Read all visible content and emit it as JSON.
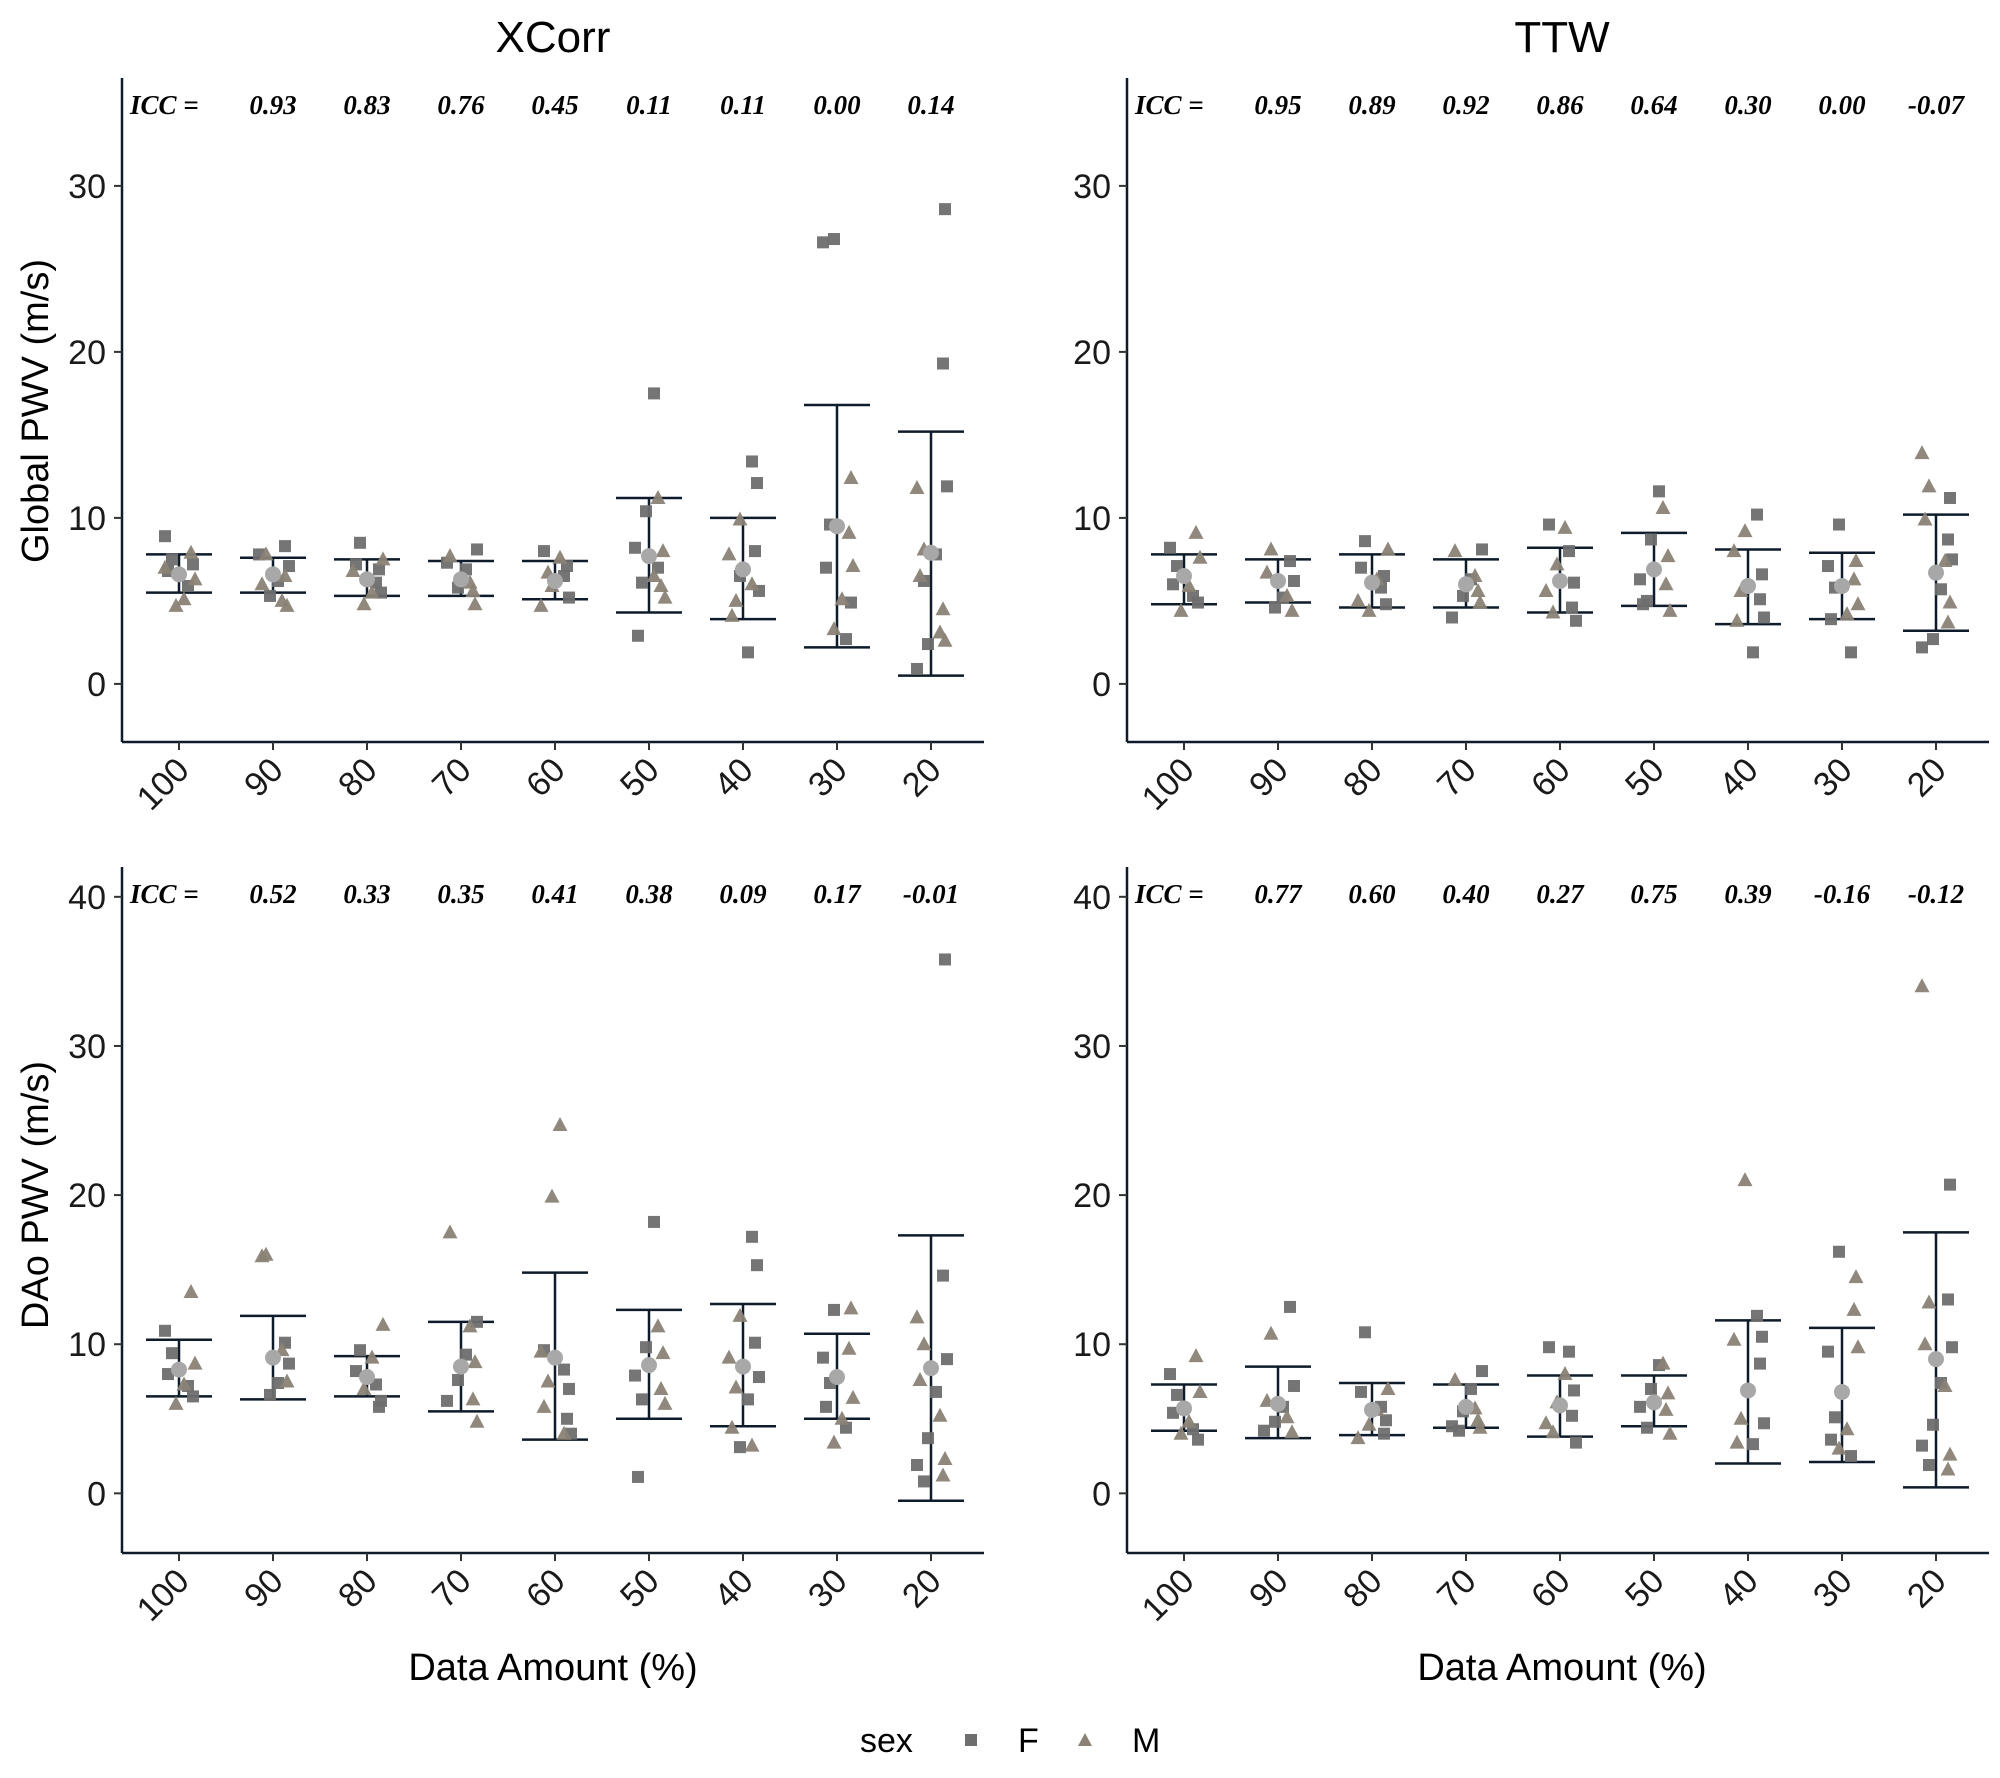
{
  "legend": {
    "title": "sex",
    "entries": [
      {
        "label": "F",
        "shape": "square",
        "color": "#6e6e6e"
      },
      {
        "label": "M",
        "shape": "triangle",
        "color": "#8a8275"
      }
    ]
  },
  "colors": {
    "axis": "#0d1b2a",
    "mean_point": "#a8a8a8",
    "square": "#6e6e6e",
    "triangle": "#8a8275"
  },
  "chart_data": [
    {
      "type": "scatter",
      "column_title": "XCorr",
      "ylabel": "Global PWV (m/s)",
      "xlabel": "",
      "categories": [
        "100",
        "90",
        "80",
        "70",
        "60",
        "50",
        "40",
        "30",
        "20"
      ],
      "ylim": [
        -3.5,
        36.5
      ],
      "yticks": [
        0,
        10,
        20,
        30
      ],
      "icc_label": "ICC =",
      "icc": [
        "0.93",
        "0.83",
        "0.76",
        "0.45",
        "0.11",
        "0.11",
        "0.00",
        "0.14"
      ],
      "mean": [
        6.6,
        6.6,
        6.3,
        6.3,
        6.2,
        7.7,
        6.9,
        9.5,
        7.9
      ],
      "lower": [
        5.5,
        5.5,
        5.3,
        5.3,
        5.1,
        4.3,
        3.9,
        2.2,
        0.5
      ],
      "upper": [
        7.8,
        7.6,
        7.5,
        7.4,
        7.4,
        11.2,
        10.0,
        16.8,
        15.2
      ],
      "points_F": [
        [
          8.9,
          7.5,
          6.8,
          5.9,
          7.2
        ],
        [
          8.3,
          7.1,
          6.2,
          5.3,
          7.8
        ],
        [
          8.5,
          7.2,
          6.1,
          5.5,
          6.9
        ],
        [
          8.1,
          6.9,
          5.8,
          7.3
        ],
        [
          8.0,
          6.5,
          5.2,
          7.1
        ],
        [
          17.5,
          10.4,
          8.2,
          6.1,
          2.9,
          7.0
        ],
        [
          13.4,
          12.1,
          8.0,
          5.6,
          1.9,
          6.5
        ],
        [
          26.8,
          26.6,
          9.6,
          7.0,
          2.7,
          4.9
        ],
        [
          28.6,
          19.3,
          11.9,
          7.8,
          2.4,
          0.9,
          6.2
        ]
      ],
      "points_M": [
        [
          7.9,
          6.3,
          5.1,
          4.7,
          7.0
        ],
        [
          7.8,
          6.0,
          5.0,
          4.7,
          6.5
        ],
        [
          7.5,
          5.5,
          4.8,
          6.8
        ],
        [
          7.7,
          6.1,
          4.8,
          5.6
        ],
        [
          7.6,
          5.9,
          4.7,
          6.7
        ],
        [
          11.2,
          8.0,
          5.9,
          5.2,
          6.5
        ],
        [
          9.9,
          7.8,
          5.0,
          4.1,
          6.0
        ],
        [
          12.4,
          9.1,
          7.1,
          5.1,
          3.3
        ],
        [
          11.8,
          8.1,
          6.5,
          3.1,
          2.6,
          4.5
        ]
      ]
    },
    {
      "type": "scatter",
      "column_title": "TTW",
      "ylabel": "",
      "xlabel": "",
      "categories": [
        "100",
        "90",
        "80",
        "70",
        "60",
        "50",
        "40",
        "30",
        "20"
      ],
      "ylim": [
        -3.5,
        36.5
      ],
      "yticks": [
        0,
        10,
        20,
        30
      ],
      "icc_label": "ICC =",
      "icc": [
        "0.95",
        "0.89",
        "0.92",
        "0.86",
        "0.64",
        "0.30",
        "0.00",
        "-0.07"
      ],
      "mean": [
        6.5,
        6.2,
        6.1,
        6.0,
        6.2,
        6.9,
        5.9,
        5.9,
        6.7
      ],
      "lower": [
        4.8,
        4.9,
        4.6,
        4.6,
        4.3,
        4.7,
        3.6,
        3.9,
        3.2
      ],
      "upper": [
        7.8,
        7.5,
        7.8,
        7.5,
        8.2,
        9.1,
        8.1,
        7.9,
        10.2
      ],
      "points_F": [
        [
          8.2,
          7.1,
          6.0,
          5.3,
          4.9
        ],
        [
          7.4,
          6.2,
          5.2,
          4.6
        ],
        [
          8.6,
          7.0,
          5.8,
          4.8,
          6.5
        ],
        [
          8.1,
          6.3,
          5.3,
          4.0
        ],
        [
          9.6,
          8.0,
          6.1,
          4.6,
          3.8
        ],
        [
          11.6,
          8.7,
          6.3,
          5.0,
          4.8
        ],
        [
          10.2,
          6.6,
          5.1,
          4.0,
          1.9
        ],
        [
          9.6,
          7.1,
          5.8,
          3.9,
          1.9
        ],
        [
          11.2,
          8.7,
          7.5,
          5.7,
          2.7,
          2.2
        ]
      ],
      "points_M": [
        [
          9.1,
          7.6,
          5.9,
          4.4
        ],
        [
          8.1,
          6.7,
          5.3,
          4.4
        ],
        [
          8.1,
          6.3,
          4.4,
          5.0
        ],
        [
          8.0,
          6.5,
          4.9,
          5.6
        ],
        [
          9.4,
          7.2,
          5.6,
          4.3
        ],
        [
          10.6,
          7.7,
          6.0,
          4.4
        ],
        [
          9.2,
          8.0,
          5.6,
          3.8
        ],
        [
          7.4,
          6.3,
          4.8,
          4.2
        ],
        [
          13.9,
          11.9,
          9.9,
          7.4,
          4.9,
          3.7
        ]
      ]
    },
    {
      "type": "scatter",
      "column_title": "",
      "ylabel": "DAo PWV (m/s)",
      "xlabel": "Data Amount (%)",
      "categories": [
        "100",
        "90",
        "80",
        "70",
        "60",
        "50",
        "40",
        "30",
        "20"
      ],
      "ylim": [
        -4,
        42
      ],
      "yticks": [
        0,
        10,
        20,
        30,
        40
      ],
      "icc_label": "ICC =",
      "icc": [
        "0.52",
        "0.33",
        "0.35",
        "0.41",
        "0.38",
        "0.09",
        "0.17",
        "-0.01"
      ],
      "mean": [
        8.3,
        9.1,
        7.8,
        8.5,
        9.1,
        8.6,
        8.5,
        7.8,
        8.4
      ],
      "lower": [
        6.5,
        6.3,
        6.5,
        5.5,
        3.6,
        5.0,
        4.5,
        5.0,
        -0.5
      ],
      "upper": [
        10.3,
        11.9,
        9.2,
        11.5,
        14.8,
        12.3,
        12.7,
        10.7,
        17.3
      ],
      "points_F": [
        [
          10.9,
          9.4,
          8.0,
          7.2,
          6.5
        ],
        [
          10.1,
          8.7,
          7.4,
          6.6
        ],
        [
          9.6,
          8.2,
          7.3,
          6.2,
          5.8
        ],
        [
          11.5,
          9.3,
          7.6,
          6.2
        ],
        [
          9.6,
          8.3,
          7.0,
          5.0,
          4.0
        ],
        [
          18.2,
          9.8,
          7.9,
          6.3,
          1.1
        ],
        [
          17.2,
          15.3,
          10.1,
          7.8,
          6.3,
          3.1
        ],
        [
          12.3,
          9.1,
          7.4,
          5.8,
          4.4
        ],
        [
          35.8,
          14.6,
          9.0,
          6.8,
          3.7,
          1.9,
          0.8
        ]
      ],
      "points_M": [
        [
          13.5,
          8.7,
          7.3,
          6.0
        ],
        [
          16.0,
          15.9,
          9.6,
          7.5
        ],
        [
          11.3,
          9.1,
          7.0
        ],
        [
          17.5,
          11.2,
          8.8,
          6.3,
          4.8
        ],
        [
          24.7,
          19.9,
          9.5,
          7.5,
          5.8,
          4.0
        ],
        [
          11.2,
          9.4,
          7.0,
          6.0
        ],
        [
          11.9,
          9.1,
          7.1,
          4.4,
          3.2
        ],
        [
          12.4,
          9.7,
          6.4,
          5.0,
          3.4
        ],
        [
          11.8,
          10.0,
          7.6,
          5.2,
          2.3,
          1.2
        ]
      ]
    },
    {
      "type": "scatter",
      "column_title": "",
      "ylabel": "",
      "xlabel": "Data Amount (%)",
      "categories": [
        "100",
        "90",
        "80",
        "70",
        "60",
        "50",
        "40",
        "30",
        "20"
      ],
      "ylim": [
        -4,
        42
      ],
      "yticks": [
        0,
        10,
        20,
        30,
        40
      ],
      "icc_label": "ICC =",
      "icc": [
        "0.77",
        "0.60",
        "0.40",
        "0.27",
        "0.75",
        "0.39",
        "-0.16",
        "-0.12"
      ],
      "mean": [
        5.7,
        6.0,
        5.6,
        5.8,
        5.9,
        6.1,
        6.9,
        6.8,
        9.0
      ],
      "lower": [
        4.2,
        3.7,
        3.9,
        4.4,
        3.8,
        4.5,
        2.0,
        2.1,
        0.4
      ],
      "upper": [
        7.3,
        8.5,
        7.4,
        7.3,
        7.9,
        7.9,
        11.6,
        11.1,
        17.5
      ],
      "points_F": [
        [
          8.0,
          6.6,
          5.4,
          4.3,
          3.6
        ],
        [
          12.5,
          7.2,
          5.8,
          4.8,
          4.2
        ],
        [
          10.8,
          6.8,
          5.8,
          4.9,
          4.0
        ],
        [
          8.2,
          7.0,
          5.5,
          4.5,
          4.2
        ],
        [
          9.8,
          9.5,
          6.9,
          5.2,
          3.4
        ],
        [
          8.6,
          7.0,
          5.8,
          4.4
        ],
        [
          11.9,
          10.5,
          8.7,
          4.7,
          3.3
        ],
        [
          16.2,
          9.5,
          5.1,
          3.6,
          2.5
        ],
        [
          20.7,
          13.0,
          9.8,
          7.4,
          4.6,
          3.2,
          1.9
        ]
      ],
      "points_M": [
        [
          9.2,
          6.8,
          4.8,
          4.0
        ],
        [
          10.7,
          6.2,
          5.1,
          4.1
        ],
        [
          7.0,
          5.6,
          4.6,
          3.7
        ],
        [
          7.6,
          5.7,
          4.4,
          4.9
        ],
        [
          8.0,
          6.1,
          4.7,
          4.1
        ],
        [
          8.7,
          6.7,
          5.6,
          4.0
        ],
        [
          21.0,
          10.3,
          5.0,
          3.4
        ],
        [
          14.5,
          12.3,
          9.8,
          4.3,
          3.0
        ],
        [
          34.0,
          12.8,
          10.0,
          7.2,
          2.6,
          1.6
        ]
      ]
    }
  ]
}
